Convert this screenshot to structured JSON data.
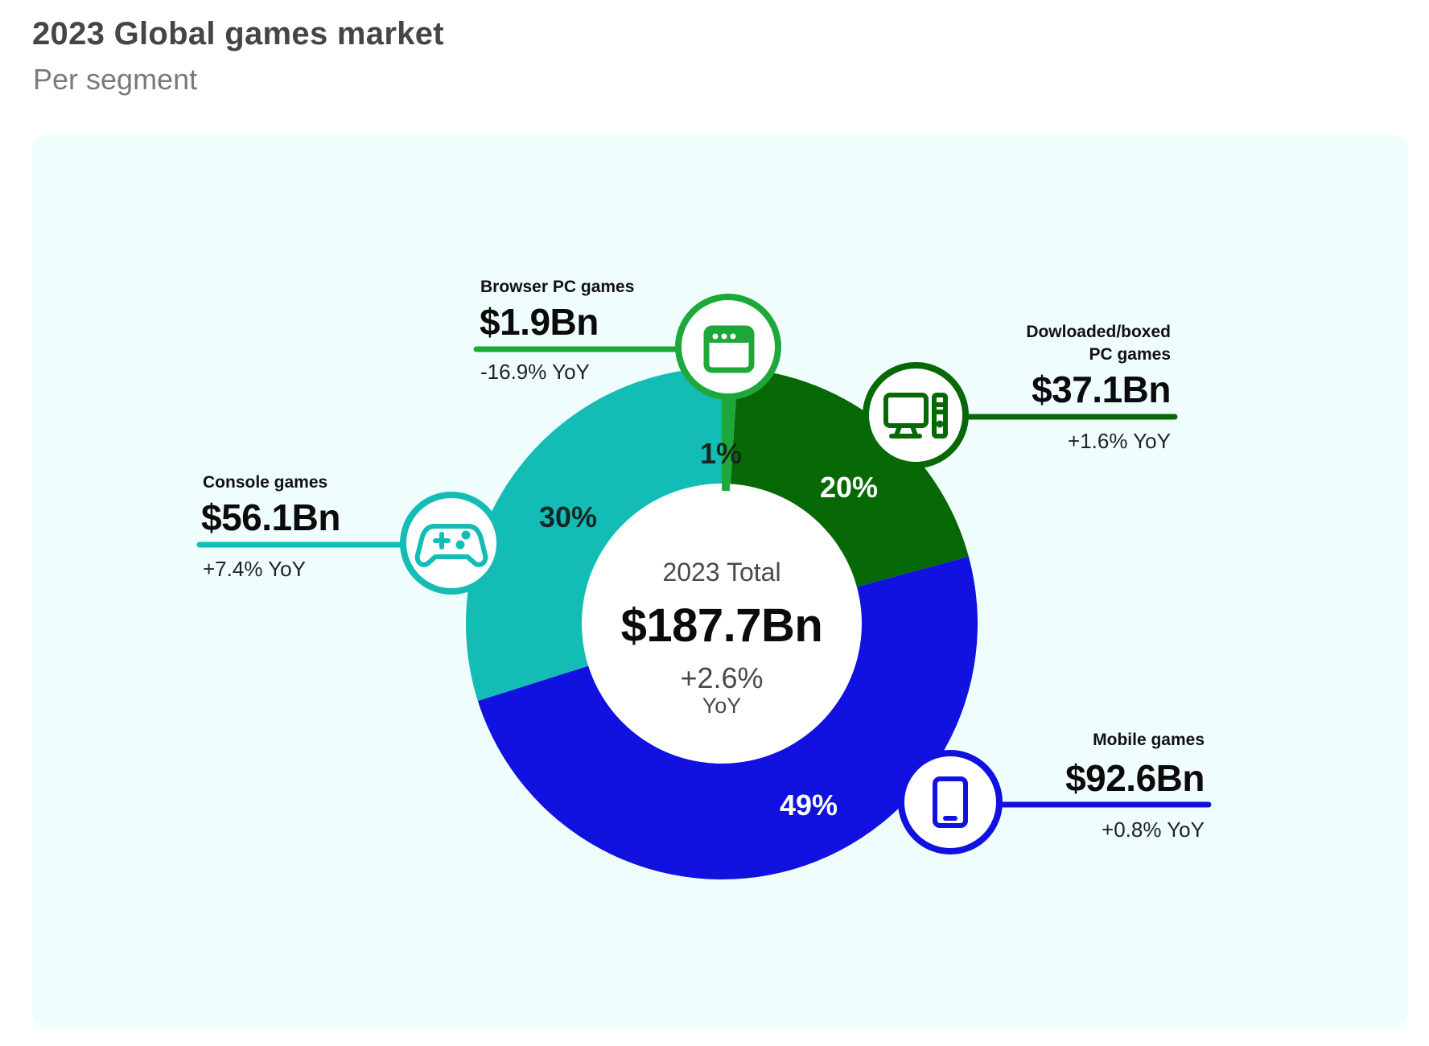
{
  "header": {
    "title": "2023 Global games market",
    "subtitle": "Per segment"
  },
  "colors": {
    "panel_bg": "#effdfd",
    "console": "#13bdb5",
    "browser_pc": "#1fa83a",
    "downloaded_pc": "#066906",
    "mobile": "#1111e0",
    "center_fill": "#ffffff"
  },
  "center": {
    "label": "2023 Total",
    "value": "$187.7Bn",
    "change": "+2.6%",
    "change_unit": "YoY"
  },
  "segments": [
    {
      "key": "browser_pc",
      "label": "Browser PC games",
      "value": "$1.9Bn",
      "yoy": "-16.9% YoY",
      "pct_label": "1%",
      "icon": "browser-window-icon"
    },
    {
      "key": "downloaded_pc",
      "label_line1": "Dowloaded/boxed",
      "label_line2": "PC games",
      "value": "$37.1Bn",
      "yoy": "+1.6% YoY",
      "pct_label": "20%",
      "icon": "desktop-computer-icon"
    },
    {
      "key": "mobile",
      "label": "Mobile games",
      "value": "$92.6Bn",
      "yoy": "+0.8% YoY",
      "pct_label": "49%",
      "icon": "smartphone-icon"
    },
    {
      "key": "console",
      "label": "Console games",
      "value": "$56.1Bn",
      "yoy": "+7.4% YoY",
      "pct_label": "30%",
      "icon": "gamepad-icon"
    }
  ],
  "chart_data": {
    "type": "pie",
    "subtype": "donut",
    "title": "2023 Global games market",
    "subtitle": "Per segment",
    "categories": [
      "Browser PC games",
      "Dowloaded/boxed PC games",
      "Mobile games",
      "Console games"
    ],
    "values": [
      1.9,
      37.1,
      92.6,
      56.1
    ],
    "unit": "$Bn",
    "percentages": [
      1,
      20,
      49,
      30
    ],
    "yoy_change_pct": [
      -16.9,
      1.6,
      0.8,
      7.4
    ],
    "total": 187.7,
    "total_yoy_change_pct": 2.6,
    "start_angle_deg": 0,
    "direction": "clockwise",
    "legend": "callout labels with icons"
  }
}
